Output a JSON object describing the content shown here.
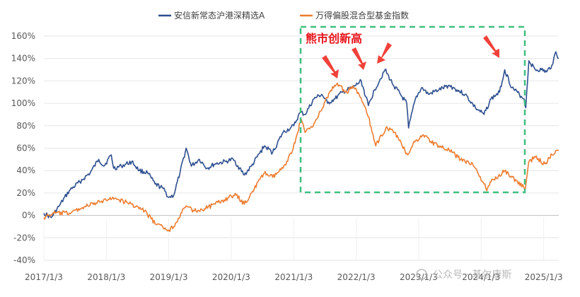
{
  "chart_data": {
    "type": "line",
    "title": "",
    "xlabel": "",
    "ylabel": "",
    "y_unit": "%",
    "ylim": [
      -40,
      160
    ],
    "y_ticks": [
      -40,
      -20,
      0,
      20,
      40,
      60,
      80,
      100,
      120,
      140,
      160
    ],
    "y_tick_labels": [
      "-40%",
      "-20%",
      "0%",
      "20%",
      "40%",
      "60%",
      "80%",
      "100%",
      "120%",
      "140%",
      "160%"
    ],
    "x_start": "2017-01-03",
    "x_end": "2025-04-01",
    "x_tick_dates": [
      "2017-01-03",
      "2018-01-03",
      "2019-01-03",
      "2020-01-03",
      "2021-01-03",
      "2022-01-03",
      "2023-01-03",
      "2024-01-03",
      "2025-01-03"
    ],
    "x_tick_labels": [
      "2017/1/3",
      "2018/1/3",
      "2019/1/3",
      "2020/1/3",
      "2021/1/3",
      "2022/1/3",
      "2023/1/3",
      "2024/1/3",
      "2025/1/3"
    ],
    "grid": "horizontal",
    "legend_position": "top",
    "series": [
      {
        "name": "安信新常态沪港深精选A",
        "color": "#2e4f8f",
        "points": [
          [
            "2017-01-03",
            2
          ],
          [
            "2017-02-15",
            -2
          ],
          [
            "2017-04-01",
            8
          ],
          [
            "2017-06-01",
            22
          ],
          [
            "2017-08-01",
            30
          ],
          [
            "2017-10-01",
            38
          ],
          [
            "2017-11-20",
            50
          ],
          [
            "2017-12-20",
            44
          ],
          [
            "2018-02-01",
            54
          ],
          [
            "2018-02-15",
            42
          ],
          [
            "2018-04-01",
            44
          ],
          [
            "2018-06-01",
            48
          ],
          [
            "2018-07-15",
            40
          ],
          [
            "2018-09-01",
            38
          ],
          [
            "2018-10-15",
            28
          ],
          [
            "2018-12-01",
            24
          ],
          [
            "2019-01-03",
            16
          ],
          [
            "2019-02-01",
            18
          ],
          [
            "2019-03-10",
            38
          ],
          [
            "2019-04-15",
            60
          ],
          [
            "2019-05-15",
            44
          ],
          [
            "2019-07-01",
            50
          ],
          [
            "2019-08-15",
            42
          ],
          [
            "2019-10-01",
            46
          ],
          [
            "2019-12-01",
            48
          ],
          [
            "2020-01-15",
            50
          ],
          [
            "2020-03-20",
            36
          ],
          [
            "2020-05-01",
            44
          ],
          [
            "2020-07-15",
            62
          ],
          [
            "2020-09-01",
            56
          ],
          [
            "2020-11-01",
            74
          ],
          [
            "2020-12-15",
            78
          ],
          [
            "2021-01-03",
            80
          ],
          [
            "2021-02-10",
            92
          ],
          [
            "2021-03-10",
            90
          ],
          [
            "2021-05-01",
            104
          ],
          [
            "2021-06-15",
            108
          ],
          [
            "2021-07-20",
            100
          ],
          [
            "2021-09-01",
            104
          ],
          [
            "2021-10-15",
            110
          ],
          [
            "2021-12-15",
            114
          ],
          [
            "2022-02-01",
            120
          ],
          [
            "2022-03-15",
            98
          ],
          [
            "2022-04-20",
            112
          ],
          [
            "2022-06-20",
            130
          ],
          [
            "2022-08-01",
            118
          ],
          [
            "2022-10-25",
            100
          ],
          [
            "2022-11-05",
            78
          ],
          [
            "2022-12-15",
            104
          ],
          [
            "2023-01-20",
            114
          ],
          [
            "2023-03-01",
            108
          ],
          [
            "2023-05-01",
            112
          ],
          [
            "2023-07-01",
            116
          ],
          [
            "2023-08-15",
            112
          ],
          [
            "2023-10-01",
            108
          ],
          [
            "2023-12-01",
            96
          ],
          [
            "2024-01-20",
            90
          ],
          [
            "2024-03-01",
            104
          ],
          [
            "2024-04-20",
            110
          ],
          [
            "2024-05-20",
            130
          ],
          [
            "2024-07-01",
            114
          ],
          [
            "2024-09-10",
            104
          ],
          [
            "2024-09-20",
            96
          ],
          [
            "2024-10-08",
            138
          ],
          [
            "2024-11-15",
            130
          ],
          [
            "2024-12-20",
            130
          ],
          [
            "2025-01-20",
            128
          ],
          [
            "2025-02-20",
            134
          ],
          [
            "2025-03-15",
            146
          ],
          [
            "2025-04-01",
            140
          ]
        ]
      },
      {
        "name": "万得偏股混合型基金指数",
        "color": "#ed7d31",
        "points": [
          [
            "2017-01-03",
            -2
          ],
          [
            "2017-03-01",
            2
          ],
          [
            "2017-06-01",
            2
          ],
          [
            "2017-09-01",
            8
          ],
          [
            "2017-12-01",
            12
          ],
          [
            "2018-01-25",
            16
          ],
          [
            "2018-03-15",
            14
          ],
          [
            "2018-06-01",
            10
          ],
          [
            "2018-08-15",
            4
          ],
          [
            "2018-10-20",
            -8
          ],
          [
            "2019-01-03",
            -13
          ],
          [
            "2019-02-01",
            -10
          ],
          [
            "2019-03-15",
            2
          ],
          [
            "2019-04-20",
            8
          ],
          [
            "2019-06-01",
            4
          ],
          [
            "2019-08-01",
            6
          ],
          [
            "2019-10-01",
            10
          ],
          [
            "2019-12-20",
            16
          ],
          [
            "2020-02-01",
            18
          ],
          [
            "2020-03-20",
            10
          ],
          [
            "2020-05-01",
            20
          ],
          [
            "2020-07-15",
            38
          ],
          [
            "2020-09-01",
            34
          ],
          [
            "2020-11-01",
            42
          ],
          [
            "2020-12-31",
            60
          ],
          [
            "2021-02-15",
            86
          ],
          [
            "2021-03-10",
            74
          ],
          [
            "2021-05-01",
            82
          ],
          [
            "2021-06-20",
            96
          ],
          [
            "2021-08-01",
            110
          ],
          [
            "2021-09-15",
            118
          ],
          [
            "2021-11-01",
            110
          ],
          [
            "2021-12-20",
            114
          ],
          [
            "2022-01-20",
            108
          ],
          [
            "2022-03-15",
            88
          ],
          [
            "2022-04-27",
            62
          ],
          [
            "2022-06-25",
            78
          ],
          [
            "2022-08-15",
            74
          ],
          [
            "2022-10-31",
            54
          ],
          [
            "2022-12-01",
            64
          ],
          [
            "2023-01-31",
            72
          ],
          [
            "2023-03-15",
            66
          ],
          [
            "2023-05-01",
            62
          ],
          [
            "2023-07-01",
            58
          ],
          [
            "2023-08-20",
            52
          ],
          [
            "2023-10-01",
            48
          ],
          [
            "2023-11-15",
            46
          ],
          [
            "2024-01-20",
            28
          ],
          [
            "2024-02-05",
            22
          ],
          [
            "2024-03-01",
            30
          ],
          [
            "2024-05-20",
            40
          ],
          [
            "2024-07-01",
            34
          ],
          [
            "2024-09-18",
            24
          ],
          [
            "2024-10-08",
            48
          ],
          [
            "2024-11-15",
            52
          ],
          [
            "2025-01-10",
            46
          ],
          [
            "2025-02-20",
            54
          ],
          [
            "2025-03-15",
            58
          ],
          [
            "2025-04-01",
            58
          ]
        ]
      }
    ],
    "annotations": [
      {
        "text": "熊市创新高",
        "color": "#e8141b"
      }
    ]
  },
  "watermark": "公众号 · 基尔康斯"
}
